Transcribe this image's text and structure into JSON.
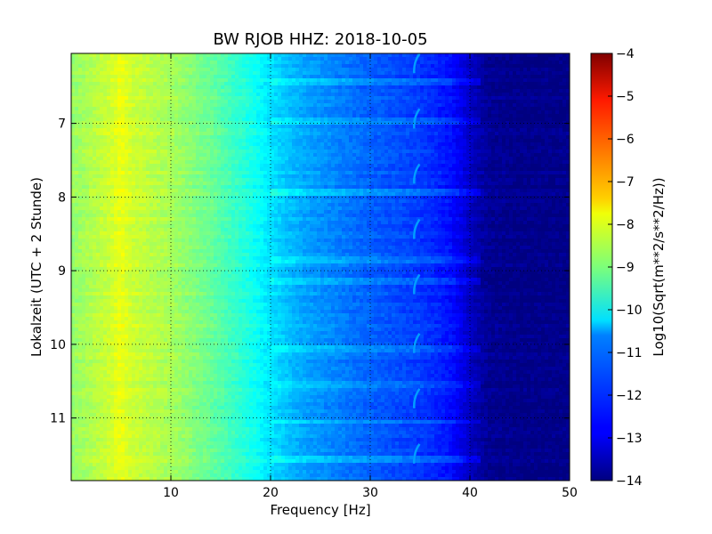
{
  "chart_data": {
    "type": "heatmap",
    "title": "BW RJOB HHZ: 2018-10-05",
    "xlabel": "Frequency [Hz]",
    "ylabel": "Lokalzeit (UTC + 2 Stunde)",
    "xlim": [
      0,
      50
    ],
    "ylim": [
      6.05,
      11.85
    ],
    "y_inverted": true,
    "x_ticks": [
      10,
      20,
      30,
      40,
      50
    ],
    "y_ticks": [
      7,
      8,
      9,
      10,
      11
    ],
    "grid": true,
    "colormap": "jet",
    "colorbar": {
      "label": "Log10(Sqrt(m**2/s**2/Hz))",
      "range": [
        -14,
        -4
      ],
      "ticks": [
        -14,
        -13,
        -12,
        -11,
        -10,
        -9,
        -8,
        -7,
        -6,
        -5,
        -4
      ]
    },
    "spectral_profile": {
      "frequency_hz": [
        0,
        2,
        4,
        5,
        6,
        8,
        10,
        12,
        14,
        16,
        18,
        20,
        22,
        24,
        26,
        28,
        30,
        32,
        34,
        36,
        37,
        38,
        39,
        40,
        41,
        42,
        45,
        50
      ],
      "log10_amplitude": [
        -8.8,
        -8.5,
        -8.2,
        -7.9,
        -8.2,
        -8.4,
        -8.6,
        -8.9,
        -9.2,
        -9.6,
        -10.0,
        -10.5,
        -10.9,
        -11.2,
        -11.4,
        -11.6,
        -11.8,
        -11.95,
        -12.1,
        -12.3,
        -12.45,
        -12.6,
        -12.9,
        -13.3,
        -13.6,
        -13.8,
        -13.9,
        -13.9
      ]
    },
    "horizontal_streaks_hours": [
      6.45,
      6.95,
      7.95,
      8.85,
      9.15,
      10.05,
      10.55,
      11.05,
      11.55
    ],
    "recurring_feature": {
      "frequency_hz": 34.5,
      "times_hours": [
        6.15,
        6.9,
        7.65,
        8.4,
        9.15,
        9.95,
        10.7,
        11.45
      ]
    }
  }
}
